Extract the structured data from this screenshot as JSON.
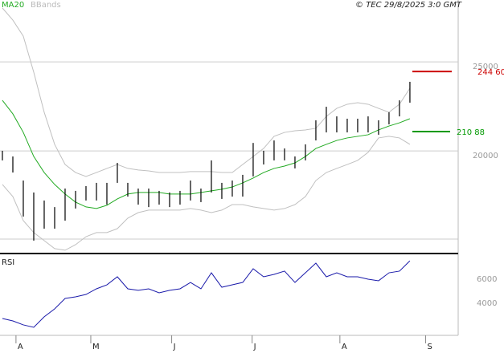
{
  "chart_data": {
    "type": "stock",
    "credit": "© TEC 29/8/2025 3:0 GMT",
    "xlim": [
      -0.23,
      43.62
    ],
    "xticks": [
      {
        "value": 1.3,
        "label": "A"
      },
      {
        "value": 8.46,
        "label": "M"
      },
      {
        "value": 16.2,
        "label": "J"
      },
      {
        "value": 23.9,
        "label": "J"
      },
      {
        "value": 32.3,
        "label": "A"
      },
      {
        "value": 40.5,
        "label": "S"
      }
    ],
    "ylim": [
      14290,
      28470
    ],
    "yticks": [
      20000,
      25000
    ],
    "bar_color": "#000000",
    "high": [
      20010,
      19690,
      18340,
      17670,
      17220,
      16850,
      17890,
      17760,
      18030,
      18210,
      18210,
      19330,
      18210,
      17890,
      17890,
      17760,
      17670,
      17760,
      18340,
      17890,
      19470,
      18210,
      18340,
      18660,
      20450,
      20010,
      20590,
      20140,
      19690,
      20370,
      21720,
      22480,
      21940,
      21810,
      21810,
      21940,
      21720,
      22170,
      22840,
      23880
    ],
    "low": [
      19470,
      18790,
      16320,
      14970,
      15640,
      15640,
      16090,
      16770,
      17220,
      17220,
      16990,
      18210,
      17440,
      16990,
      16850,
      16990,
      16850,
      16990,
      17220,
      17130,
      17670,
      17310,
      17440,
      17440,
      18570,
      19240,
      19470,
      19470,
      19020,
      19470,
      20590,
      21040,
      21040,
      21040,
      21040,
      21040,
      20910,
      21490,
      21940,
      22710
    ],
    "series": [
      {
        "name": "MA20",
        "color": "#22aa22",
        "values": [
          22840,
          22080,
          21040,
          19690,
          18790,
          18120,
          17580,
          17130,
          16860,
          16770,
          16950,
          17310,
          17580,
          17670,
          17670,
          17670,
          17580,
          17580,
          17580,
          17670,
          17760,
          17850,
          17980,
          18210,
          18480,
          18790,
          19020,
          19150,
          19330,
          19690,
          20140,
          20370,
          20590,
          20730,
          20820,
          20910,
          21180,
          21400,
          21580,
          21810
        ]
      },
      {
        "name": "BBands",
        "color": "#c0c0c0",
        "upper": [
          28020,
          27340,
          26440,
          24420,
          22170,
          20370,
          19240,
          18790,
          18570,
          18790,
          19020,
          19240,
          19020,
          18930,
          18880,
          18790,
          18790,
          18790,
          18840,
          18840,
          18840,
          18790,
          18790,
          19240,
          19690,
          20140,
          20820,
          21040,
          21130,
          21180,
          21270,
          21940,
          22390,
          22620,
          22710,
          22620,
          22390,
          22170,
          22620,
          23520
        ],
        "lower": [
          18120,
          17440,
          16090,
          15420,
          14970,
          14520,
          14430,
          14740,
          15190,
          15420,
          15420,
          15640,
          16230,
          16540,
          16680,
          16680,
          16680,
          16680,
          16770,
          16680,
          16540,
          16680,
          16990,
          16990,
          16860,
          16770,
          16680,
          16770,
          16990,
          17440,
          18340,
          18790,
          19020,
          19240,
          19470,
          19920,
          20730,
          20820,
          20730,
          20370
        ]
      }
    ],
    "annotations": [
      {
        "value": 24460,
        "label": "244 60",
        "color": "#cc0000"
      },
      {
        "value": 21088,
        "label": "210 88",
        "color": "#009900"
      }
    ],
    "rsi": {
      "label": "RSI",
      "color": "#1a1aaa",
      "ylim": [
        1330,
        8000
      ],
      "yticks": [
        4000,
        6000
      ],
      "values": [
        2730,
        2530,
        2200,
        2000,
        2870,
        3530,
        4400,
        4530,
        4730,
        5200,
        5530,
        6200,
        5200,
        5070,
        5200,
        4870,
        5070,
        5200,
        5730,
        5200,
        6530,
        5330,
        5530,
        5730,
        6870,
        6200,
        6400,
        6670,
        5730,
        6530,
        7330,
        6200,
        6530,
        6200,
        6200,
        6000,
        5870,
        6530,
        6670,
        7530
      ]
    }
  }
}
